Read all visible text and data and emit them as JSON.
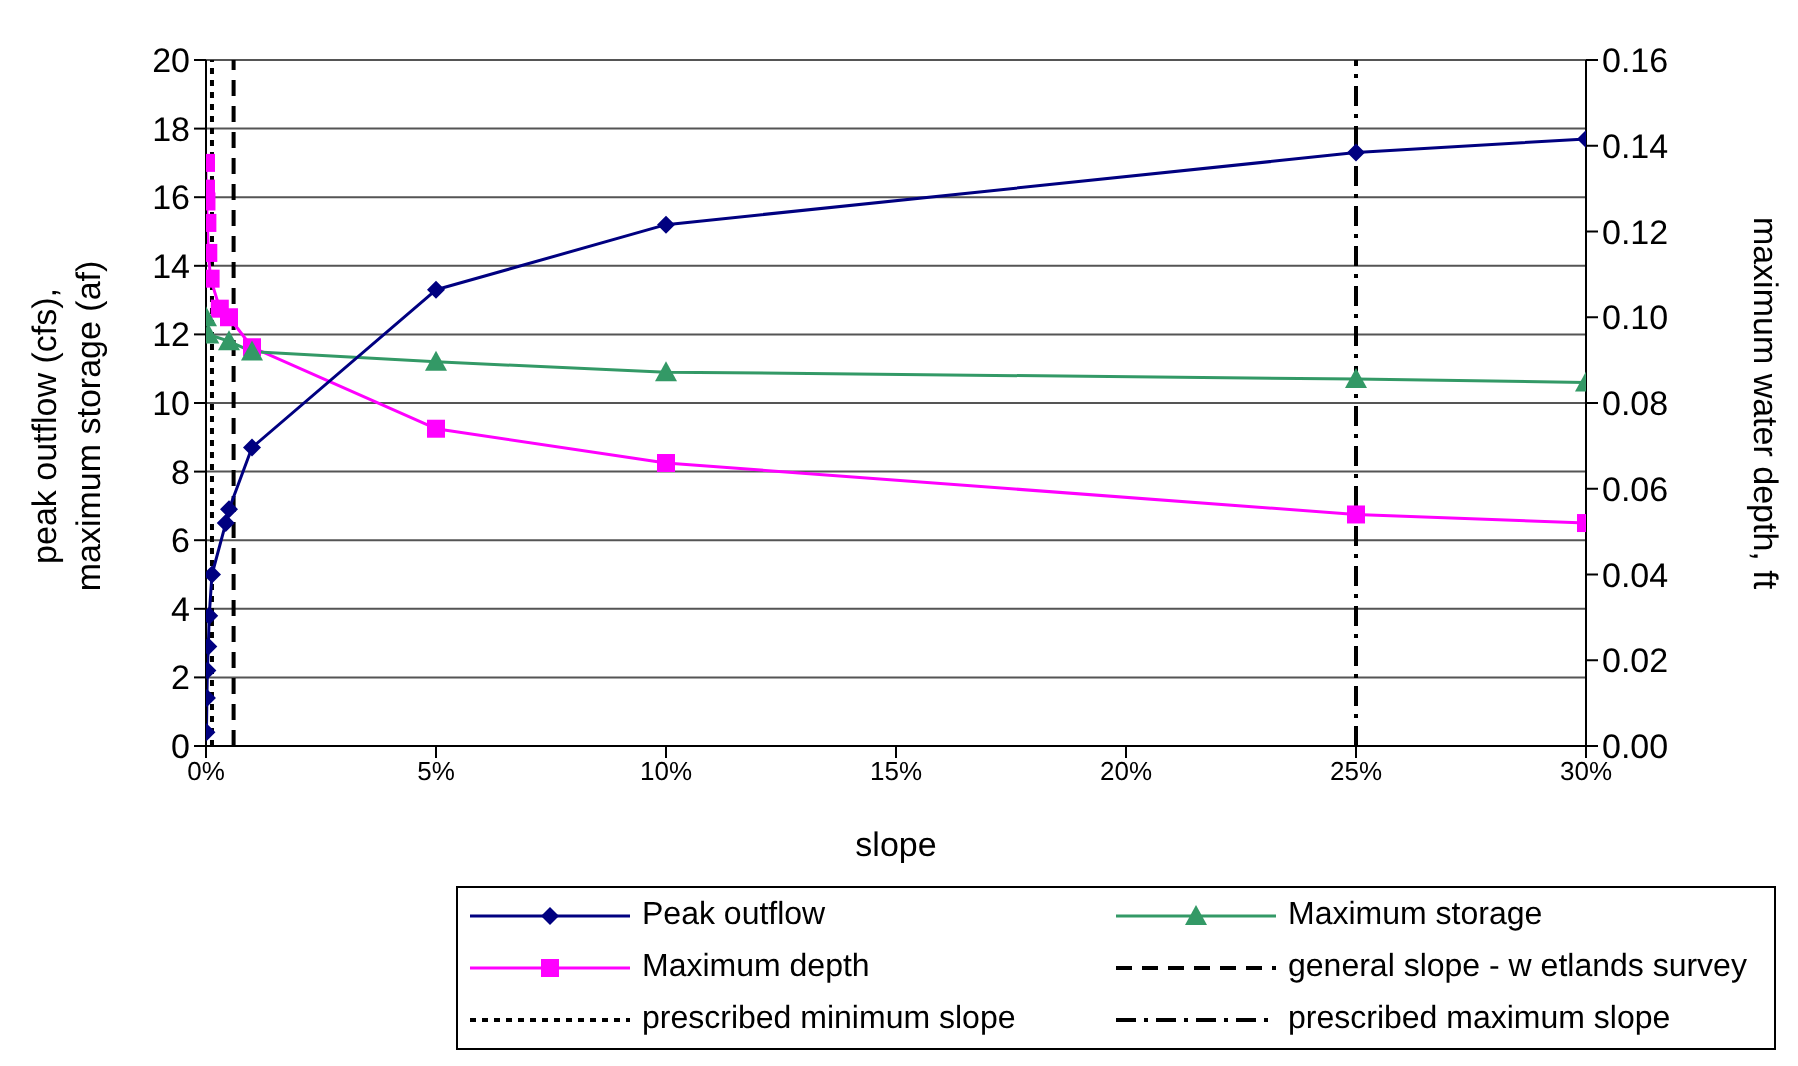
{
  "chart_data": {
    "type": "line",
    "xlabel": "slope",
    "ylabel": "peak outflow (cfs), maximum storage (af)",
    "y2label": "maximum water depth, ft",
    "xlim": [
      0,
      30
    ],
    "xticks": [
      {
        "value": 0,
        "label": "0%"
      },
      {
        "value": 5,
        "label": "5%"
      },
      {
        "value": 10,
        "label": "10%"
      },
      {
        "value": 15,
        "label": "15%"
      },
      {
        "value": 20,
        "label": "20%"
      },
      {
        "value": 25,
        "label": "25%"
      },
      {
        "value": 30,
        "label": "30%"
      }
    ],
    "ylim": [
      0,
      20
    ],
    "yticks": [
      0,
      2,
      4,
      6,
      8,
      10,
      12,
      14,
      16,
      18,
      20
    ],
    "y2lim": [
      0,
      0.16
    ],
    "y2ticks": [
      {
        "value": 0,
        "label": "0.00"
      },
      {
        "value": 0.02,
        "label": "0.02"
      },
      {
        "value": 0.04,
        "label": "0.04"
      },
      {
        "value": 0.06,
        "label": "0.06"
      },
      {
        "value": 0.08,
        "label": "0.08"
      },
      {
        "value": 0.1,
        "label": "0.10"
      },
      {
        "value": 0.12,
        "label": "0.12"
      },
      {
        "value": 0.14,
        "label": "0.14"
      },
      {
        "value": 0.16,
        "label": "0.16"
      }
    ],
    "grid": "y",
    "legend": "bottom",
    "series": [
      {
        "name": "Peak outflow",
        "color": "#000080",
        "marker": "diamond",
        "x": [
          0.01,
          0.02,
          0.03,
          0.05,
          0.07,
          0.13,
          0.43,
          0.5,
          1,
          5,
          10,
          25,
          30
        ],
        "values": [
          0.4,
          1.4,
          2.2,
          2.9,
          3.8,
          5.0,
          6.5,
          6.9,
          8.7,
          13.3,
          15.2,
          17.3,
          17.7
        ]
      },
      {
        "name": "Maximum storage",
        "color": "#339966",
        "marker": "triangle",
        "x": [
          0,
          0.05,
          0.5,
          1,
          5,
          10,
          25,
          30
        ],
        "values": [
          12.5,
          12.0,
          11.8,
          11.5,
          11.2,
          10.9,
          10.7,
          10.6
        ]
      },
      {
        "name": "Maximum depth",
        "color": "#ff00ff",
        "marker": "square",
        "axis": "y2",
        "x": [
          0,
          0,
          0.01,
          0.03,
          0.05,
          0.1,
          0.3,
          0.5,
          1,
          5,
          10,
          25,
          30
        ],
        "values": [
          0.136,
          0.13,
          0.127,
          0.122,
          0.115,
          0.109,
          0.102,
          0.1,
          0.093,
          0.074,
          0.066,
          0.054,
          0.052
        ]
      }
    ],
    "ref_lines": [
      {
        "axis": "x",
        "value": 0.6,
        "label": "general slope - w etlands survey",
        "line_style": "dashed",
        "color": "#000000"
      },
      {
        "axis": "x",
        "value": 0.13,
        "label": "prescribed minimum slope",
        "line_style": "dotted",
        "color": "#000000"
      },
      {
        "axis": "x",
        "value": 25,
        "label": "prescribed maximum slope",
        "line_style": "dashdot",
        "color": "#000000"
      }
    ]
  }
}
